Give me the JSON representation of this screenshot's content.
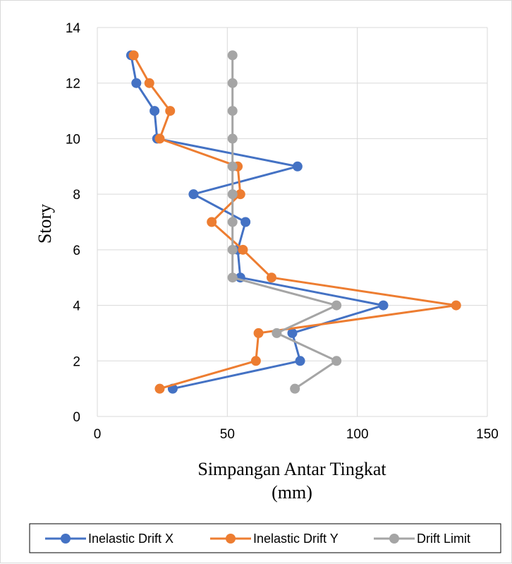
{
  "chart_data": {
    "type": "line",
    "title": "",
    "xlabel_lines": [
      "Simpangan Antar Tingkat",
      "(mm)"
    ],
    "ylabel": "Story",
    "xlim": [
      0,
      150
    ],
    "ylim": [
      0,
      14
    ],
    "xticks": [
      0,
      50,
      100,
      150
    ],
    "yticks": [
      0,
      2,
      4,
      6,
      8,
      10,
      12,
      14
    ],
    "grid": true,
    "legend_position": "bottom",
    "series": [
      {
        "name": "Inelastic Drift X",
        "color": "#4472c4",
        "points": [
          [
            29,
            1
          ],
          [
            78,
            2
          ],
          [
            75,
            3
          ],
          [
            110,
            4
          ],
          [
            55,
            5
          ],
          [
            54,
            6
          ],
          [
            57,
            7
          ],
          [
            37,
            8
          ],
          [
            77,
            9
          ],
          [
            23,
            10
          ],
          [
            22,
            11
          ],
          [
            15,
            12
          ],
          [
            13,
            13
          ]
        ]
      },
      {
        "name": "Inelastic Drift Y",
        "color": "#ed7d31",
        "points": [
          [
            24,
            1
          ],
          [
            61,
            2
          ],
          [
            62,
            3
          ],
          [
            138,
            4
          ],
          [
            67,
            5
          ],
          [
            56,
            6
          ],
          [
            44,
            7
          ],
          [
            55,
            8
          ],
          [
            54,
            9
          ],
          [
            24,
            10
          ],
          [
            28,
            11
          ],
          [
            20,
            12
          ],
          [
            14,
            13
          ]
        ]
      },
      {
        "name": "Drift Limit",
        "color": "#a5a5a5",
        "points": [
          [
            76,
            1
          ],
          [
            92,
            2
          ],
          [
            69,
            3
          ],
          [
            92,
            4
          ],
          [
            52,
            5
          ],
          [
            52,
            6
          ],
          [
            52,
            7
          ],
          [
            52,
            8
          ],
          [
            52,
            9
          ],
          [
            52,
            10
          ],
          [
            52,
            11
          ],
          [
            52,
            12
          ],
          [
            52,
            13
          ]
        ]
      }
    ]
  }
}
